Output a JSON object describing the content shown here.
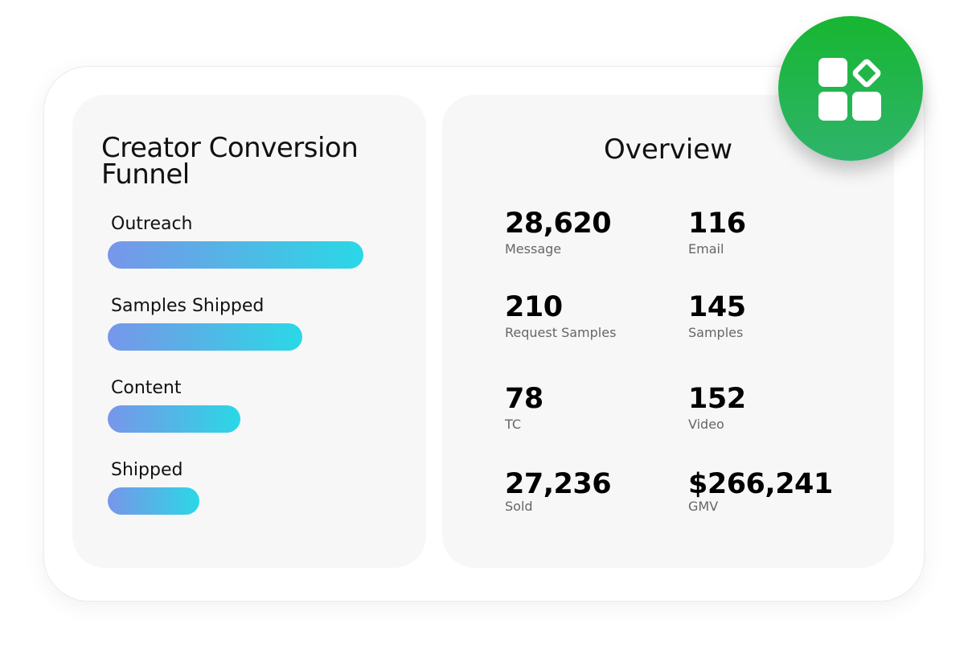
{
  "funnel": {
    "title": "Creator Conversion Funnel",
    "stages": [
      {
        "label": "Outreach",
        "level": 1.0
      },
      {
        "label": "Samples Shipped",
        "level": 0.76
      },
      {
        "label": "Content",
        "level": 0.52
      },
      {
        "label": "Shipped",
        "level": 0.36
      }
    ],
    "bar_gradient": [
      "#7796ea",
      "#2ad8e6"
    ]
  },
  "overview": {
    "title": "Overview",
    "stats": [
      {
        "value": "28,620",
        "label": "Message"
      },
      {
        "value": "116",
        "label": "Email"
      },
      {
        "value": "210",
        "label": "Request Samples"
      },
      {
        "value": "145",
        "label": "Samples"
      },
      {
        "value": "78",
        "label": "TC"
      },
      {
        "value": "152",
        "label": "Video"
      },
      {
        "value": "27,236",
        "label": "Sold"
      },
      {
        "value": "$266,241",
        "label": "GMV"
      }
    ]
  },
  "badge": {
    "icon": "apps-grid-icon",
    "color": "#1db443"
  }
}
